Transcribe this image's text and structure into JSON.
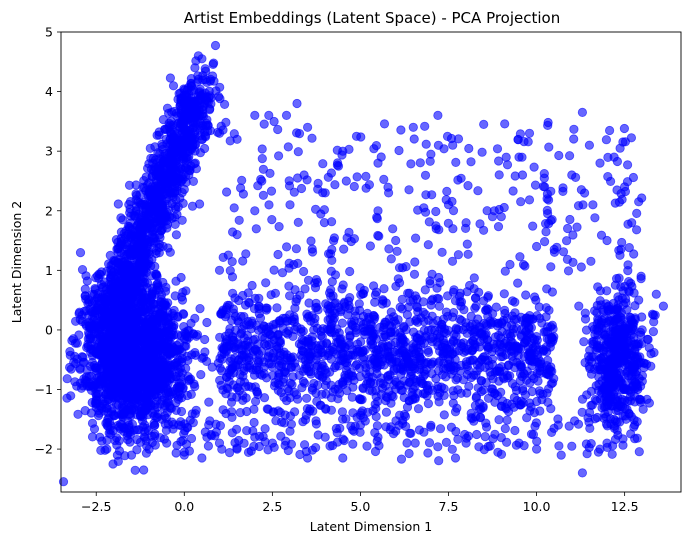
{
  "chart_data": {
    "type": "scatter",
    "title": "Artist Embeddings (Latent Space) - PCA Projection",
    "xlabel": "Latent Dimension 1",
    "ylabel": "Latent Dimension 2",
    "xlim": [
      -3.5,
      14.1
    ],
    "ylim": [
      -2.72,
      5.0
    ],
    "x_ticks": [
      -2.5,
      0.0,
      2.5,
      5.0,
      7.5,
      10.0,
      12.5
    ],
    "x_tick_labels": [
      "−2.5",
      "0.0",
      "2.5",
      "5.0",
      "7.5",
      "10.0",
      "12.5"
    ],
    "y_ticks": [
      -2,
      -1,
      0,
      1,
      2,
      3,
      4,
      5
    ],
    "y_tick_labels": [
      "−2",
      "−1",
      "0",
      "1",
      "2",
      "3",
      "4",
      "5"
    ],
    "grid": false,
    "series": [
      {
        "color": "#0000ff",
        "alpha": 0.6,
        "points": [
          [
            -2.9,
            -0.45
          ],
          [
            -2.8,
            0.1
          ],
          [
            -2.7,
            -0.9
          ],
          [
            -2.6,
            0.3
          ],
          [
            -2.5,
            -1.3
          ],
          [
            -2.4,
            -1.8
          ],
          [
            -2.3,
            0.6
          ],
          [
            -2.2,
            -2.0
          ],
          [
            -2.0,
            0.9
          ],
          [
            -1.9,
            -2.1
          ],
          [
            -1.8,
            1.3
          ],
          [
            -1.6,
            1.6
          ],
          [
            -1.4,
            1.9
          ],
          [
            -1.2,
            2.1
          ],
          [
            -1.0,
            2.3
          ],
          [
            -0.8,
            2.6
          ],
          [
            -0.6,
            2.8
          ],
          [
            -0.4,
            3.0
          ],
          [
            -0.2,
            3.3
          ],
          [
            0.0,
            3.5
          ],
          [
            0.1,
            3.8
          ],
          [
            0.2,
            4.1
          ],
          [
            0.3,
            4.4
          ],
          [
            0.4,
            4.6
          ],
          [
            0.5,
            4.55
          ],
          [
            0.6,
            4.2
          ],
          [
            0.7,
            3.9
          ],
          [
            0.4,
            3.85
          ],
          [
            -0.1,
            3.85
          ],
          [
            0.0,
            3.6
          ],
          [
            -1.5,
            -2.1
          ],
          [
            -1.0,
            -2.0
          ],
          [
            -0.5,
            -1.9
          ],
          [
            0.0,
            -2.1
          ],
          [
            0.5,
            -2.15
          ],
          [
            1.0,
            -1.9
          ],
          [
            1.5,
            -2.0
          ],
          [
            2.0,
            -1.8
          ],
          [
            2.5,
            -1.9
          ],
          [
            3.0,
            -1.7
          ],
          [
            3.5,
            -2.15
          ],
          [
            4.0,
            -1.8
          ],
          [
            4.5,
            -2.15
          ],
          [
            5.0,
            -1.6
          ],
          [
            5.5,
            -1.8
          ],
          [
            6.0,
            -1.7
          ],
          [
            7.0,
            -1.6
          ],
          [
            7.7,
            -2.15
          ],
          [
            8.0,
            -1.9
          ],
          [
            9.5,
            -1.9
          ],
          [
            10.0,
            -2.0
          ],
          [
            10.7,
            -2.1
          ],
          [
            11.3,
            -2.4
          ],
          [
            11.8,
            -2.0
          ],
          [
            12.0,
            -1.9
          ],
          [
            12.2,
            -1.5
          ],
          [
            1.0,
            3.3
          ],
          [
            1.5,
            3.2
          ],
          [
            2.0,
            3.6
          ],
          [
            2.4,
            3.6
          ],
          [
            2.9,
            3.6
          ],
          [
            3.2,
            3.8
          ],
          [
            3.5,
            3.4
          ],
          [
            4.5,
            3.0
          ],
          [
            5.5,
            2.8
          ],
          [
            6.5,
            3.4
          ],
          [
            7.2,
            3.6
          ],
          [
            7.0,
            2.95
          ],
          [
            8.5,
            3.45
          ],
          [
            9.5,
            2.9
          ],
          [
            9.8,
            3.3
          ],
          [
            11.3,
            3.65
          ],
          [
            11.5,
            3.1
          ],
          [
            11.8,
            2.8
          ],
          [
            12.2,
            2.9
          ],
          [
            12.5,
            2.4
          ],
          [
            12.9,
            2.15
          ],
          [
            12.7,
            1.8
          ],
          [
            12.0,
            1.5
          ],
          [
            11.0,
            2.6
          ],
          [
            10.5,
            1.35
          ],
          [
            10.0,
            1.4
          ],
          [
            9.0,
            1.9
          ],
          [
            8.0,
            1.8
          ],
          [
            7.5,
            2.1
          ],
          [
            6.8,
            2.05
          ],
          [
            6.0,
            1.5
          ],
          [
            5.5,
            2.0
          ],
          [
            4.0,
            2.3
          ],
          [
            3.0,
            2.1
          ],
          [
            2.0,
            2.0
          ],
          [
            1.5,
            1.6
          ],
          [
            1.0,
            1.0
          ],
          [
            2.2,
            2.5
          ],
          [
            3.4,
            2.6
          ],
          [
            4.6,
            2.5
          ],
          [
            5.8,
            2.3
          ],
          [
            8.8,
            2.0
          ],
          [
            9.6,
            2.6
          ],
          [
            10.3,
            2.2
          ],
          [
            11.6,
            2.1
          ],
          [
            13.6,
            0.4
          ],
          [
            13.4,
            0.6
          ],
          [
            13.0,
            0.0
          ],
          [
            12.8,
            -0.6
          ],
          [
            12.5,
            -1.0
          ],
          [
            13.2,
            -0.3
          ],
          [
            12.2,
            -0.8
          ],
          [
            11.9,
            0.3
          ],
          [
            12.4,
            0.2
          ],
          [
            12.6,
            -0.2
          ],
          [
            12.9,
            0.5
          ],
          [
            12.3,
            -1.3
          ],
          [
            12.0,
            -1.0
          ],
          [
            11.5,
            -0.5
          ],
          [
            11.2,
            0.4
          ]
        ]
      }
    ]
  }
}
